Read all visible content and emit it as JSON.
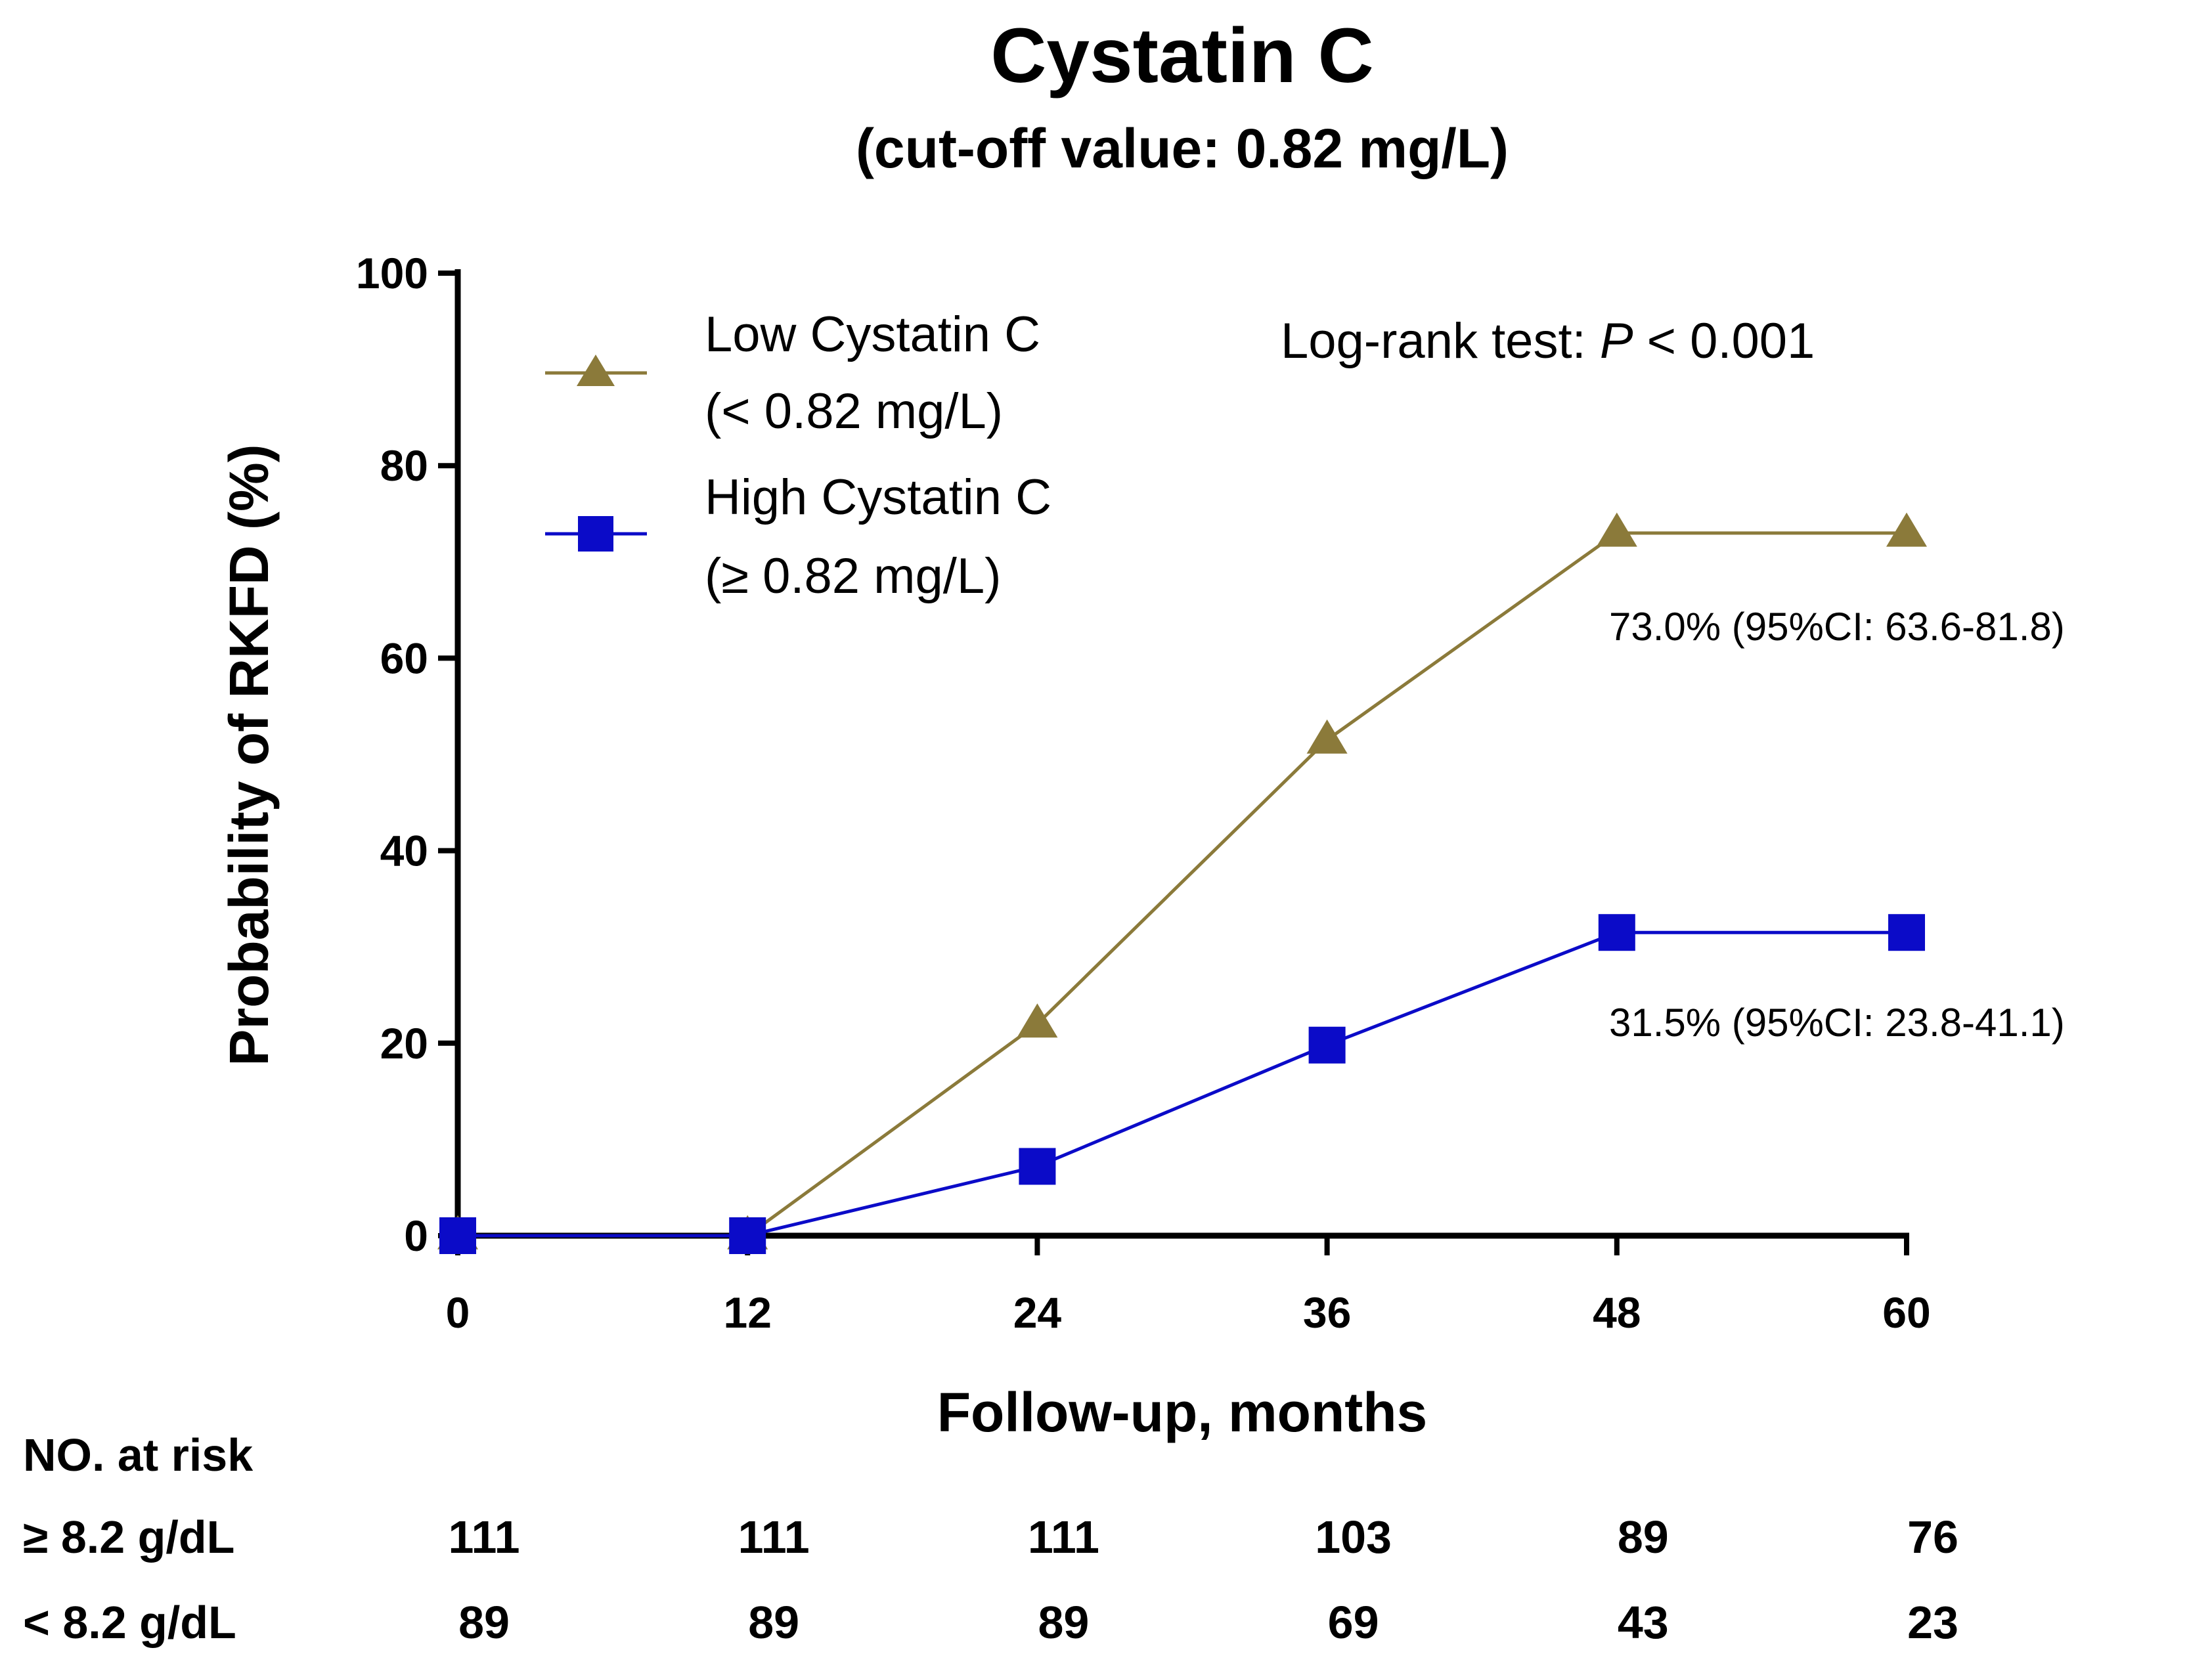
{
  "chart_data": {
    "type": "line",
    "title": "Cystatin C",
    "subtitle": "(cut-off value: 0.82 mg/L)",
    "xlabel": "Follow-up, months",
    "ylabel": "Probability of RKFD (%)",
    "x": [
      0,
      12,
      24,
      36,
      48,
      60
    ],
    "x_ticks": [
      "0",
      "12",
      "24",
      "36",
      "48",
      "60"
    ],
    "y_ticks": [
      "0",
      "20",
      "40",
      "60",
      "80",
      "100"
    ],
    "xlim": [
      0,
      60
    ],
    "ylim": [
      0,
      100
    ],
    "grid": false,
    "legend_position": "top-left",
    "series": [
      {
        "name": "Low Cystatin C",
        "sub": "(< 0.82 mg/L)",
        "color": "#8B7A3A",
        "marker": "triangle",
        "values": [
          0,
          0,
          22.0,
          51.5,
          73.0,
          73.0
        ]
      },
      {
        "name": "High Cystatin C",
        "sub": "(≥ 0.82 mg/L)",
        "color": "#0B0BC8",
        "marker": "square",
        "values": [
          0,
          0,
          7.2,
          19.8,
          31.5,
          31.5
        ]
      }
    ],
    "log_rank_prefix": "Log-rank test: ",
    "log_rank_p": "P",
    "log_rank_suffix": " < 0.001",
    "annotations": [
      "73.0% (95%CI: 63.6-81.8)",
      "31.5% (95%CI: 23.8-41.1)"
    ],
    "at_risk": {
      "header": "NO. at risk",
      "rows": [
        {
          "label": "≥ 8.2 g/dL",
          "values": [
            "111",
            "111",
            "111",
            "103",
            "89",
            "76"
          ]
        },
        {
          "label": "< 8.2 g/dL",
          "values": [
            "89",
            "89",
            "89",
            "69",
            "43",
            "23"
          ]
        }
      ]
    }
  }
}
